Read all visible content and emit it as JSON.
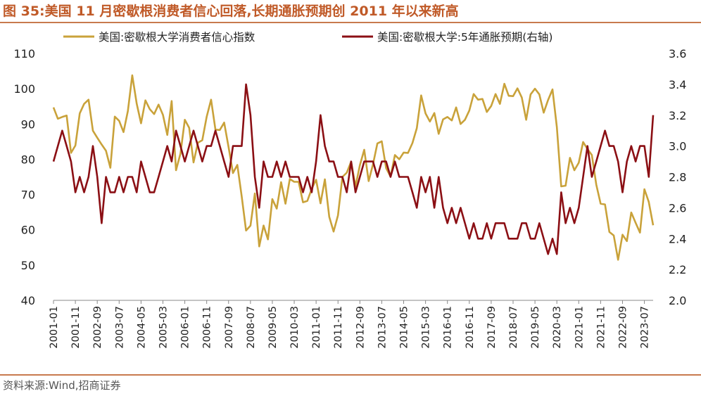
{
  "title": "图 35:美国 11 月密歇根消费者信心回落,长期通胀预期创 2011 年以来新高",
  "source": "资料来源:Wind,招商证券",
  "chart_data": {
    "type": "line",
    "x_ticks": [
      "2001-01",
      "2001-11",
      "2002-09",
      "2003-07",
      "2004-05",
      "2005-03",
      "2006-01",
      "2006-11",
      "2007-09",
      "2008-07",
      "2009-05",
      "2010-03",
      "2011-01",
      "2011-11",
      "2012-09",
      "2013-07",
      "2014-05",
      "2015-03",
      "2016-01",
      "2016-11",
      "2017-09",
      "2018-07",
      "2019-05",
      "2020-03",
      "2021-01",
      "2021-11",
      "2022-09",
      "2023-07"
    ],
    "x_range": [
      "2001-01",
      "2023-11"
    ],
    "y_left": {
      "min": 40,
      "max": 110,
      "ticks": [
        "40",
        "50",
        "60",
        "70",
        "80",
        "90",
        "100",
        "110"
      ]
    },
    "y_right": {
      "min": 2.0,
      "max": 3.6,
      "ticks": [
        "2.0",
        "2.2",
        "2.4",
        "2.6",
        "2.8",
        "3.0",
        "3.2",
        "3.4",
        "3.6"
      ]
    },
    "legend_position": "top",
    "series": [
      {
        "name": "美国:密歇根大学消费者信心指数",
        "axis": "left",
        "color": "#c9a23a",
        "points": [
          [
            "2001-01",
            94.7
          ],
          [
            "2001-03",
            91.5
          ],
          [
            "2001-05",
            92.0
          ],
          [
            "2001-07",
            92.4
          ],
          [
            "2001-09",
            81.8
          ],
          [
            "2001-11",
            83.9
          ],
          [
            "2002-01",
            93.0
          ],
          [
            "2002-03",
            95.7
          ],
          [
            "2002-05",
            96.9
          ],
          [
            "2002-07",
            88.1
          ],
          [
            "2002-09",
            86.1
          ],
          [
            "2002-11",
            84.2
          ],
          [
            "2003-01",
            82.4
          ],
          [
            "2003-03",
            77.6
          ],
          [
            "2003-05",
            92.1
          ],
          [
            "2003-07",
            90.9
          ],
          [
            "2003-09",
            87.7
          ],
          [
            "2003-11",
            93.7
          ],
          [
            "2004-01",
            103.8
          ],
          [
            "2004-03",
            95.8
          ],
          [
            "2004-05",
            90.2
          ],
          [
            "2004-07",
            96.7
          ],
          [
            "2004-09",
            94.2
          ],
          [
            "2004-11",
            92.8
          ],
          [
            "2005-01",
            95.5
          ],
          [
            "2005-03",
            92.6
          ],
          [
            "2005-05",
            86.9
          ],
          [
            "2005-07",
            96.5
          ],
          [
            "2005-09",
            76.9
          ],
          [
            "2005-11",
            81.6
          ],
          [
            "2006-01",
            91.2
          ],
          [
            "2006-03",
            88.9
          ],
          [
            "2006-05",
            79.1
          ],
          [
            "2006-07",
            84.7
          ],
          [
            "2006-09",
            85.4
          ],
          [
            "2006-11",
            92.1
          ],
          [
            "2007-01",
            96.9
          ],
          [
            "2007-03",
            88.4
          ],
          [
            "2007-05",
            88.3
          ],
          [
            "2007-07",
            90.4
          ],
          [
            "2007-09",
            83.4
          ],
          [
            "2007-11",
            76.1
          ],
          [
            "2008-01",
            78.4
          ],
          [
            "2008-03",
            69.5
          ],
          [
            "2008-05",
            59.8
          ],
          [
            "2008-07",
            61.2
          ],
          [
            "2008-09",
            70.3
          ],
          [
            "2008-11",
            55.3
          ],
          [
            "2009-01",
            61.2
          ],
          [
            "2009-03",
            57.3
          ],
          [
            "2009-05",
            68.7
          ],
          [
            "2009-07",
            66.0
          ],
          [
            "2009-09",
            73.5
          ],
          [
            "2009-11",
            67.4
          ],
          [
            "2010-01",
            74.4
          ],
          [
            "2010-03",
            73.6
          ],
          [
            "2010-05",
            73.6
          ],
          [
            "2010-07",
            67.8
          ],
          [
            "2010-09",
            68.2
          ],
          [
            "2010-11",
            71.6
          ],
          [
            "2011-01",
            74.2
          ],
          [
            "2011-03",
            67.5
          ],
          [
            "2011-05",
            74.3
          ],
          [
            "2011-07",
            63.7
          ],
          [
            "2011-09",
            59.5
          ],
          [
            "2011-11",
            64.1
          ],
          [
            "2012-01",
            75.0
          ],
          [
            "2012-03",
            76.2
          ],
          [
            "2012-05",
            79.3
          ],
          [
            "2012-07",
            72.3
          ],
          [
            "2012-09",
            78.3
          ],
          [
            "2012-11",
            82.7
          ],
          [
            "2013-01",
            73.8
          ],
          [
            "2013-03",
            78.6
          ],
          [
            "2013-05",
            84.5
          ],
          [
            "2013-07",
            85.1
          ],
          [
            "2013-09",
            77.5
          ],
          [
            "2013-11",
            75.1
          ],
          [
            "2014-01",
            81.2
          ],
          [
            "2014-03",
            80.0
          ],
          [
            "2014-05",
            81.9
          ],
          [
            "2014-07",
            81.8
          ],
          [
            "2014-09",
            84.6
          ],
          [
            "2014-11",
            88.8
          ],
          [
            "2015-01",
            98.1
          ],
          [
            "2015-03",
            93.0
          ],
          [
            "2015-05",
            90.7
          ],
          [
            "2015-07",
            93.1
          ],
          [
            "2015-09",
            87.2
          ],
          [
            "2015-11",
            91.3
          ],
          [
            "2016-01",
            92.0
          ],
          [
            "2016-03",
            91.0
          ],
          [
            "2016-05",
            94.7
          ],
          [
            "2016-07",
            90.0
          ],
          [
            "2016-09",
            91.2
          ],
          [
            "2016-11",
            93.8
          ],
          [
            "2017-01",
            98.5
          ],
          [
            "2017-03",
            96.9
          ],
          [
            "2017-05",
            97.1
          ],
          [
            "2017-07",
            93.4
          ],
          [
            "2017-09",
            95.1
          ],
          [
            "2017-11",
            98.5
          ],
          [
            "2018-01",
            95.7
          ],
          [
            "2018-03",
            101.4
          ],
          [
            "2018-05",
            98.0
          ],
          [
            "2018-07",
            97.9
          ],
          [
            "2018-09",
            100.1
          ],
          [
            "2018-11",
            97.5
          ],
          [
            "2019-01",
            91.2
          ],
          [
            "2019-03",
            98.4
          ],
          [
            "2019-05",
            100.0
          ],
          [
            "2019-07",
            98.4
          ],
          [
            "2019-09",
            93.2
          ],
          [
            "2019-11",
            96.8
          ],
          [
            "2020-01",
            99.8
          ],
          [
            "2020-03",
            89.1
          ],
          [
            "2020-05",
            72.3
          ],
          [
            "2020-07",
            72.5
          ],
          [
            "2020-09",
            80.4
          ],
          [
            "2020-11",
            76.9
          ],
          [
            "2021-01",
            79.0
          ],
          [
            "2021-03",
            84.9
          ],
          [
            "2021-05",
            82.9
          ],
          [
            "2021-07",
            81.2
          ],
          [
            "2021-09",
            72.8
          ],
          [
            "2021-11",
            67.4
          ],
          [
            "2022-01",
            67.2
          ],
          [
            "2022-03",
            59.4
          ],
          [
            "2022-05",
            58.4
          ],
          [
            "2022-07",
            51.5
          ],
          [
            "2022-09",
            58.6
          ],
          [
            "2022-11",
            56.8
          ],
          [
            "2023-01",
            64.9
          ],
          [
            "2023-03",
            62.0
          ],
          [
            "2023-05",
            59.2
          ],
          [
            "2023-07",
            71.5
          ],
          [
            "2023-09",
            67.9
          ],
          [
            "2023-11",
            61.3
          ]
        ]
      },
      {
        "name": "美国:密歇根大学:5年通胀预期(右轴)",
        "axis": "right",
        "color": "#8b0f14",
        "points": [
          [
            "2001-01",
            2.9
          ],
          [
            "2001-03",
            3.0
          ],
          [
            "2001-05",
            3.1
          ],
          [
            "2001-07",
            3.0
          ],
          [
            "2001-09",
            2.9
          ],
          [
            "2001-11",
            2.7
          ],
          [
            "2002-01",
            2.8
          ],
          [
            "2002-03",
            2.7
          ],
          [
            "2002-05",
            2.8
          ],
          [
            "2002-07",
            3.0
          ],
          [
            "2002-09",
            2.8
          ],
          [
            "2002-11",
            2.5
          ],
          [
            "2003-01",
            2.8
          ],
          [
            "2003-03",
            2.7
          ],
          [
            "2003-05",
            2.7
          ],
          [
            "2003-07",
            2.8
          ],
          [
            "2003-09",
            2.7
          ],
          [
            "2003-11",
            2.8
          ],
          [
            "2004-01",
            2.8
          ],
          [
            "2004-03",
            2.7
          ],
          [
            "2004-05",
            2.9
          ],
          [
            "2004-07",
            2.8
          ],
          [
            "2004-09",
            2.7
          ],
          [
            "2004-11",
            2.7
          ],
          [
            "2005-01",
            2.8
          ],
          [
            "2005-03",
            2.9
          ],
          [
            "2005-05",
            3.0
          ],
          [
            "2005-07",
            2.9
          ],
          [
            "2005-09",
            3.1
          ],
          [
            "2005-11",
            3.0
          ],
          [
            "2006-01",
            2.9
          ],
          [
            "2006-03",
            3.0
          ],
          [
            "2006-05",
            3.1
          ],
          [
            "2006-07",
            3.0
          ],
          [
            "2006-09",
            2.9
          ],
          [
            "2006-11",
            3.0
          ],
          [
            "2007-01",
            3.0
          ],
          [
            "2007-03",
            3.1
          ],
          [
            "2007-05",
            3.0
          ],
          [
            "2007-07",
            2.9
          ],
          [
            "2007-09",
            2.8
          ],
          [
            "2007-11",
            3.0
          ],
          [
            "2008-01",
            3.0
          ],
          [
            "2008-03",
            3.0
          ],
          [
            "2008-05",
            3.4
          ],
          [
            "2008-07",
            3.2
          ],
          [
            "2008-09",
            2.8
          ],
          [
            "2008-11",
            2.6
          ],
          [
            "2009-01",
            2.9
          ],
          [
            "2009-03",
            2.8
          ],
          [
            "2009-05",
            2.8
          ],
          [
            "2009-07",
            2.9
          ],
          [
            "2009-09",
            2.8
          ],
          [
            "2009-11",
            2.9
          ],
          [
            "2010-01",
            2.8
          ],
          [
            "2010-03",
            2.8
          ],
          [
            "2010-05",
            2.8
          ],
          [
            "2010-07",
            2.7
          ],
          [
            "2010-09",
            2.8
          ],
          [
            "2010-11",
            2.7
          ],
          [
            "2011-01",
            2.9
          ],
          [
            "2011-03",
            3.2
          ],
          [
            "2011-05",
            3.0
          ],
          [
            "2011-07",
            2.9
          ],
          [
            "2011-09",
            2.9
          ],
          [
            "2011-11",
            2.8
          ],
          [
            "2012-01",
            2.8
          ],
          [
            "2012-03",
            2.7
          ],
          [
            "2012-05",
            2.9
          ],
          [
            "2012-07",
            2.7
          ],
          [
            "2012-09",
            2.8
          ],
          [
            "2012-11",
            2.9
          ],
          [
            "2013-01",
            2.9
          ],
          [
            "2013-03",
            2.9
          ],
          [
            "2013-05",
            2.8
          ],
          [
            "2013-07",
            2.9
          ],
          [
            "2013-09",
            2.9
          ],
          [
            "2013-11",
            2.8
          ],
          [
            "2014-01",
            2.9
          ],
          [
            "2014-03",
            2.8
          ],
          [
            "2014-05",
            2.8
          ],
          [
            "2014-07",
            2.8
          ],
          [
            "2014-09",
            2.7
          ],
          [
            "2014-11",
            2.6
          ],
          [
            "2015-01",
            2.8
          ],
          [
            "2015-03",
            2.7
          ],
          [
            "2015-05",
            2.8
          ],
          [
            "2015-07",
            2.6
          ],
          [
            "2015-09",
            2.8
          ],
          [
            "2015-11",
            2.6
          ],
          [
            "2016-01",
            2.5
          ],
          [
            "2016-03",
            2.6
          ],
          [
            "2016-05",
            2.5
          ],
          [
            "2016-07",
            2.6
          ],
          [
            "2016-09",
            2.5
          ],
          [
            "2016-11",
            2.4
          ],
          [
            "2017-01",
            2.5
          ],
          [
            "2017-03",
            2.4
          ],
          [
            "2017-05",
            2.4
          ],
          [
            "2017-07",
            2.5
          ],
          [
            "2017-09",
            2.4
          ],
          [
            "2017-11",
            2.5
          ],
          [
            "2018-01",
            2.5
          ],
          [
            "2018-03",
            2.5
          ],
          [
            "2018-05",
            2.4
          ],
          [
            "2018-07",
            2.4
          ],
          [
            "2018-09",
            2.4
          ],
          [
            "2018-11",
            2.5
          ],
          [
            "2019-01",
            2.5
          ],
          [
            "2019-03",
            2.4
          ],
          [
            "2019-05",
            2.4
          ],
          [
            "2019-07",
            2.5
          ],
          [
            "2019-09",
            2.4
          ],
          [
            "2019-11",
            2.3
          ],
          [
            "2020-01",
            2.4
          ],
          [
            "2020-03",
            2.3
          ],
          [
            "2020-05",
            2.7
          ],
          [
            "2020-07",
            2.5
          ],
          [
            "2020-09",
            2.6
          ],
          [
            "2020-11",
            2.5
          ],
          [
            "2021-01",
            2.6
          ],
          [
            "2021-03",
            2.8
          ],
          [
            "2021-05",
            3.0
          ],
          [
            "2021-07",
            2.8
          ],
          [
            "2021-09",
            2.9
          ],
          [
            "2021-11",
            3.0
          ],
          [
            "2022-01",
            3.1
          ],
          [
            "2022-03",
            3.0
          ],
          [
            "2022-05",
            3.0
          ],
          [
            "2022-07",
            2.9
          ],
          [
            "2022-09",
            2.7
          ],
          [
            "2022-11",
            2.9
          ],
          [
            "2023-01",
            3.0
          ],
          [
            "2023-03",
            2.9
          ],
          [
            "2023-05",
            3.0
          ],
          [
            "2023-07",
            3.0
          ],
          [
            "2023-09",
            2.8
          ],
          [
            "2023-11",
            3.2
          ]
        ]
      }
    ]
  }
}
